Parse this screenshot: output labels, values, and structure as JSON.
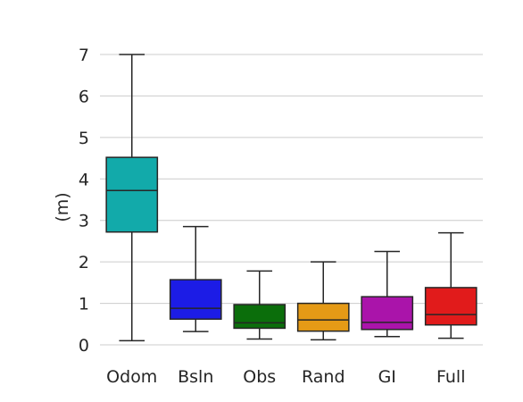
{
  "chart_data": {
    "type": "box",
    "title": "",
    "xlabel": "",
    "ylabel": "(m)",
    "ylim": [
      -0.2,
      7.6
    ],
    "yticks": [
      0,
      1,
      2,
      3,
      4,
      5,
      6,
      7
    ],
    "grid": "horizontal",
    "categories": [
      "Odom",
      "Bsln",
      "Obs",
      "Rand",
      "GI",
      "Full"
    ],
    "boxes": [
      {
        "category": "Odom",
        "min": 0.1,
        "q1": 2.72,
        "median": 3.72,
        "q3": 4.52,
        "max": 7.0,
        "color": "#12aaaa"
      },
      {
        "category": "Bsln",
        "min": 0.32,
        "q1": 0.62,
        "median": 0.88,
        "q3": 1.57,
        "max": 2.85,
        "color": "#1c1ce6"
      },
      {
        "category": "Obs",
        "min": 0.14,
        "q1": 0.4,
        "median": 0.53,
        "q3": 0.97,
        "max": 1.78,
        "color": "#0b6e0b"
      },
      {
        "category": "Rand",
        "min": 0.12,
        "q1": 0.33,
        "median": 0.6,
        "q3": 1.0,
        "max": 2.0,
        "color": "#e59a16"
      },
      {
        "category": "GI",
        "min": 0.2,
        "q1": 0.37,
        "median": 0.54,
        "q3": 1.16,
        "max": 2.25,
        "color": "#aa14aa"
      },
      {
        "category": "Full",
        "min": 0.16,
        "q1": 0.48,
        "median": 0.73,
        "q3": 1.38,
        "max": 2.7,
        "color": "#e11b1b"
      }
    ]
  }
}
